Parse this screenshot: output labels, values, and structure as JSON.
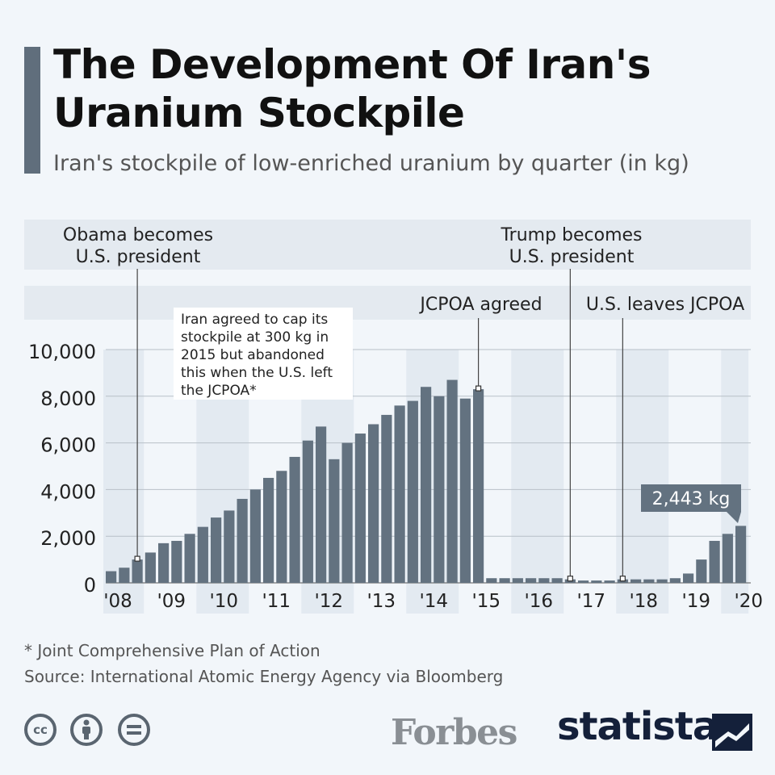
{
  "title": "The Development Of Iran's Uranium Stockpile",
  "subtitle": "Iran's stockpile of low-enriched uranium by quarter (in kg)",
  "footnote": "* Joint Comprehensive Plan of Action",
  "source": "Source: International Atomic Energy Agency via Bloomberg",
  "logos": {
    "forbes": "Forbes",
    "statista": "statista"
  },
  "license_icons": [
    "cc-icon",
    "attribution-icon",
    "no-derivatives-icon"
  ],
  "colors": {
    "bar": "#637280",
    "background": "#f2f6fa",
    "band": "#e3eaf1",
    "label_box": "#637280"
  },
  "chart_data": {
    "type": "bar",
    "title": "The Development Of Iran's Uranium Stockpile",
    "ylabel": "",
    "xlabel": "",
    "ylim": [
      0,
      10000
    ],
    "yticks": [
      "0",
      "2,000",
      "4,000",
      "6,000",
      "8,000",
      "10,000"
    ],
    "year_labels": [
      "'08",
      "'09",
      "'10",
      "'11",
      "'12",
      "'13",
      "'14",
      "'15",
      "'16",
      "'17",
      "'18",
      "'19",
      "'20"
    ],
    "series": [
      {
        "values": [
          500,
          650,
          1000,
          1300,
          1700,
          1800,
          2100,
          2400,
          2800,
          3100,
          3600,
          4000,
          4500,
          4800,
          5400,
          6100,
          6700,
          5300,
          6000,
          6400,
          6800,
          7200,
          7600,
          7800,
          8400,
          8000,
          8700,
          7900,
          8300,
          200,
          200,
          200,
          200,
          200,
          200,
          150,
          100,
          100,
          100,
          150,
          150,
          150,
          150,
          200,
          400,
          1000,
          1800,
          2100,
          2443
        ]
      }
    ],
    "annotations": [
      {
        "text": "Obama becomes U.S. president",
        "bar_index": 2
      },
      {
        "text": "Iran agreed to cap its stockpile at 300 kg in 2015 but abandoned this when the U.S. left the JCPOA*",
        "bar_index": null
      },
      {
        "text": "JCPOA agreed",
        "bar_index": 28
      },
      {
        "text": "Trump becomes U.S. president",
        "bar_index": 35
      },
      {
        "text": "U.S. leaves JCPOA",
        "bar_index": 39
      },
      {
        "text": "2,443 kg",
        "bar_index": 48
      }
    ],
    "grid": true
  }
}
